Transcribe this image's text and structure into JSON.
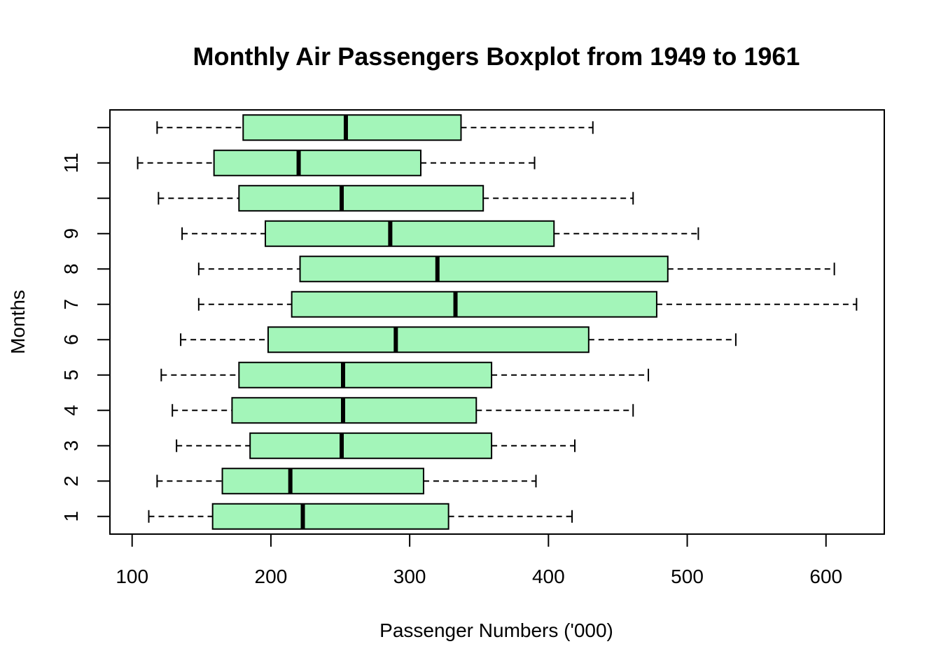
{
  "chart_data": {
    "type": "boxplot",
    "orientation": "horizontal",
    "title": "Monthly Air Passengers Boxplot from 1949 to 1961",
    "xlabel": "Passenger Numbers ('000)",
    "ylabel": "Months",
    "xlim": [
      84,
      642
    ],
    "x_ticks": [
      100,
      200,
      300,
      400,
      500,
      600
    ],
    "x_tick_labels": [
      "100",
      "200",
      "300",
      "400",
      "500",
      "600"
    ],
    "y_tick_labels": [
      "1",
      "2",
      "3",
      "4",
      "5",
      "6",
      "7",
      "8",
      "9",
      "",
      "11",
      ""
    ],
    "box_color": "#A3F5B9",
    "grid": false,
    "legend": "none",
    "boxes": [
      {
        "month": 1,
        "whisker_low": 112,
        "q1": 158,
        "median": 223,
        "q3": 328,
        "whisker_high": 417
      },
      {
        "month": 2,
        "whisker_low": 118,
        "q1": 165,
        "median": 214,
        "q3": 310,
        "whisker_high": 391
      },
      {
        "month": 3,
        "whisker_low": 132,
        "q1": 185,
        "median": 251,
        "q3": 359,
        "whisker_high": 419
      },
      {
        "month": 4,
        "whisker_low": 129,
        "q1": 172,
        "median": 252,
        "q3": 348,
        "whisker_high": 461
      },
      {
        "month": 5,
        "whisker_low": 121,
        "q1": 177,
        "median": 252,
        "q3": 359,
        "whisker_high": 472
      },
      {
        "month": 6,
        "whisker_low": 135,
        "q1": 198,
        "median": 290,
        "q3": 429,
        "whisker_high": 535
      },
      {
        "month": 7,
        "whisker_low": 148,
        "q1": 215,
        "median": 333,
        "q3": 478,
        "whisker_high": 622
      },
      {
        "month": 8,
        "whisker_low": 148,
        "q1": 221,
        "median": 320,
        "q3": 486,
        "whisker_high": 606
      },
      {
        "month": 9,
        "whisker_low": 136,
        "q1": 196,
        "median": 286,
        "q3": 404,
        "whisker_high": 508
      },
      {
        "month": 10,
        "whisker_low": 119,
        "q1": 177,
        "median": 251,
        "q3": 353,
        "whisker_high": 461
      },
      {
        "month": 11,
        "whisker_low": 104,
        "q1": 159,
        "median": 220,
        "q3": 308,
        "whisker_high": 390
      },
      {
        "month": 12,
        "whisker_low": 118,
        "q1": 180,
        "median": 254,
        "q3": 337,
        "whisker_high": 432
      }
    ]
  }
}
